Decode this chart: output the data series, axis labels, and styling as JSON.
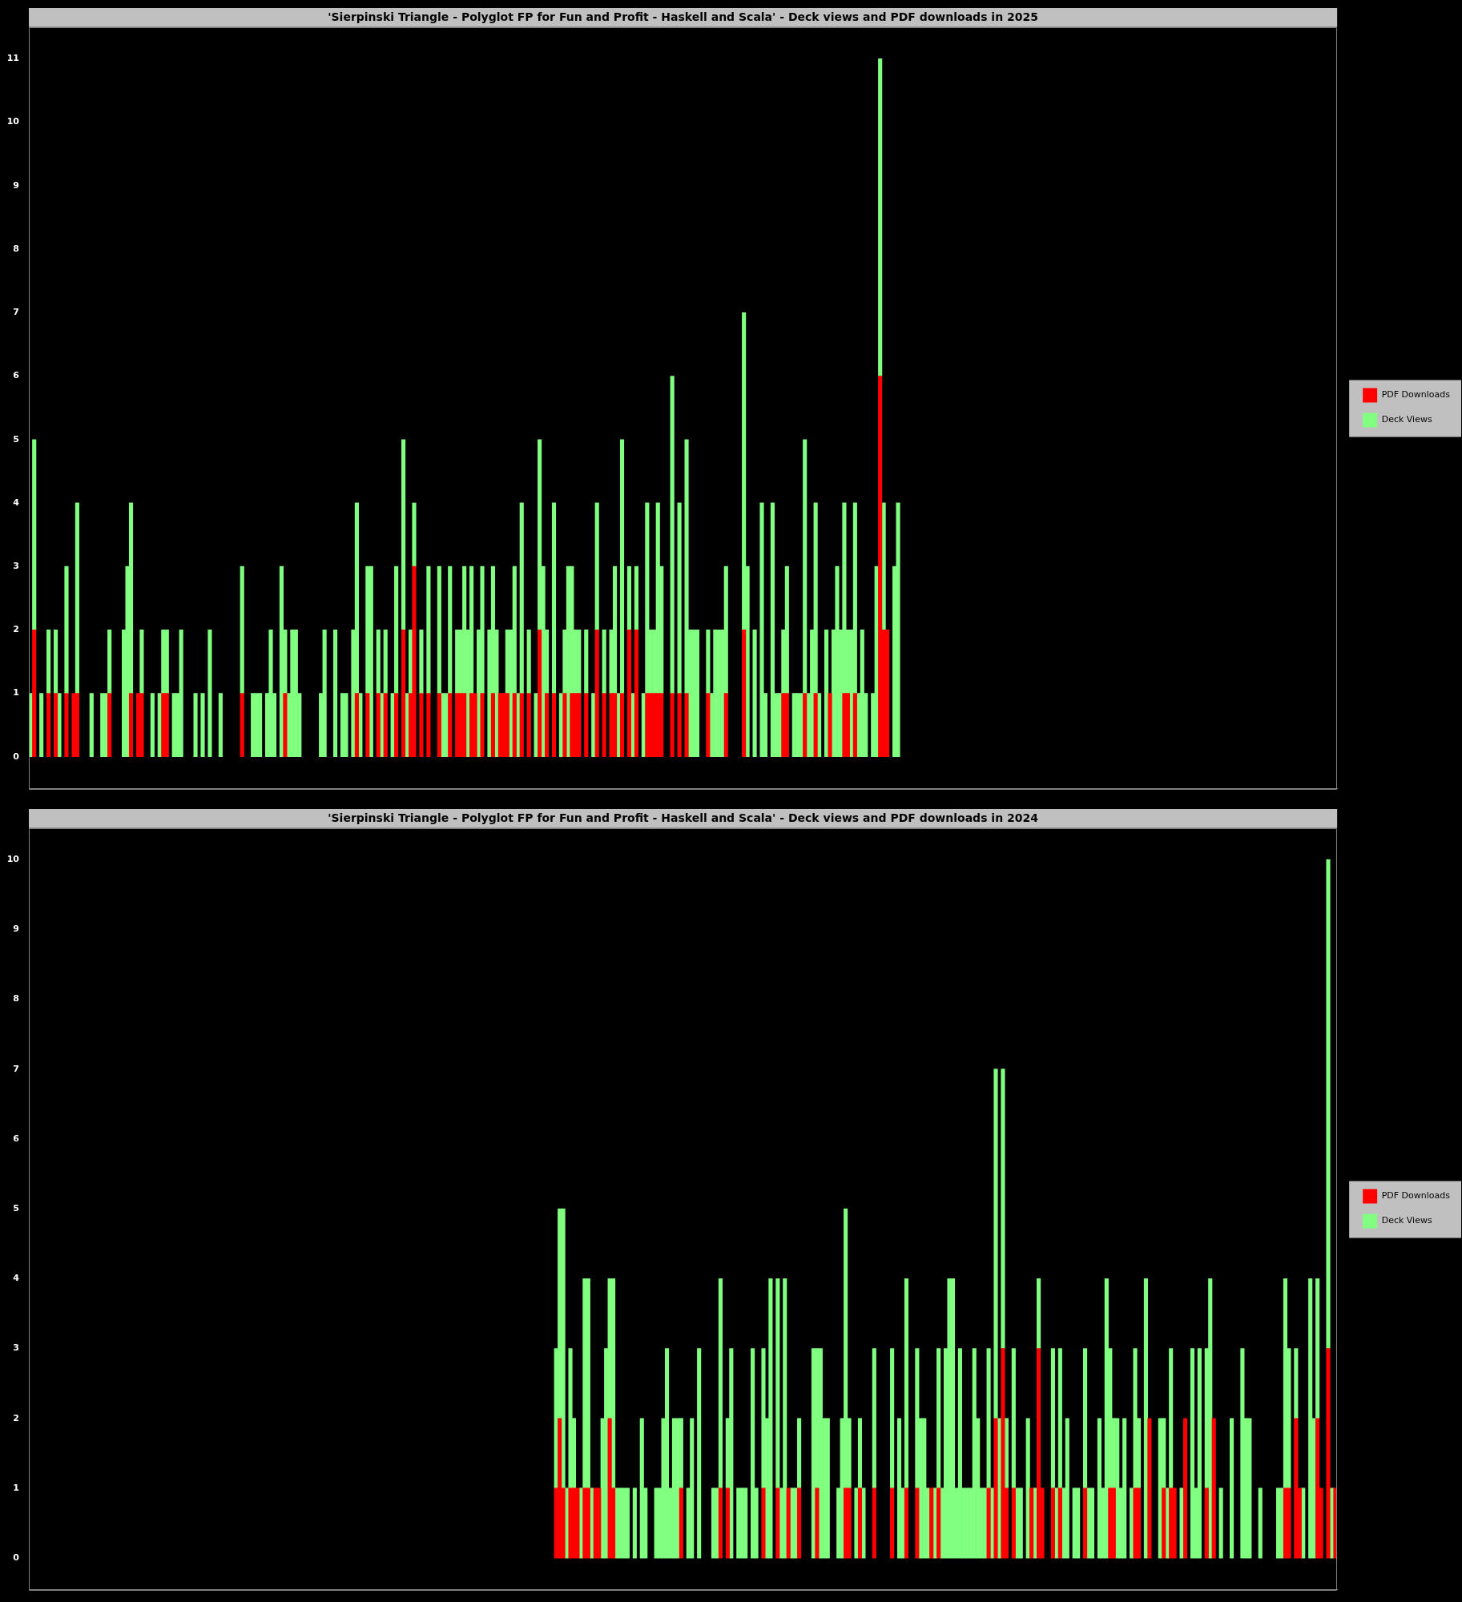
{
  "chart_data": [
    {
      "type": "bar",
      "title": "'Sierpinski Triangle - Polyglot FP for Fun and Profit - Haskell and Scala' - Deck views and PDF downloads in 2025",
      "categories": [
        null,
        null,
        null,
        null,
        null,
        null,
        null,
        null,
        null,
        null,
        null,
        null,
        null,
        null,
        null,
        null,
        null,
        null,
        null,
        null,
        null,
        null,
        null,
        null,
        null,
        null,
        null,
        null,
        null,
        null,
        null,
        null,
        null,
        null,
        null,
        null,
        null,
        null,
        null,
        null,
        null,
        null,
        null,
        null,
        null,
        null,
        null,
        null,
        null,
        null,
        null,
        null,
        null,
        null,
        null,
        null,
        null,
        null,
        null,
        null,
        null,
        null,
        null,
        null,
        null,
        null,
        null,
        null,
        null,
        null,
        null,
        null,
        null,
        null,
        null,
        null,
        null,
        null,
        null,
        null,
        null,
        null,
        null,
        null,
        null,
        null,
        null,
        null,
        null,
        null,
        null,
        null,
        null,
        null,
        null,
        null,
        null,
        null,
        null,
        null,
        null,
        null,
        null,
        null,
        null,
        null,
        null,
        null,
        null,
        null,
        null,
        null,
        null,
        null,
        null,
        null,
        null,
        null,
        null,
        null,
        null,
        null,
        null,
        null,
        null,
        null,
        null,
        null,
        null,
        null,
        null,
        null,
        null,
        null,
        null,
        null,
        null,
        null,
        null,
        null,
        null,
        null,
        null,
        null,
        null,
        null,
        null,
        null,
        null,
        null,
        null,
        null,
        null,
        null,
        null,
        null,
        null,
        null,
        null,
        null,
        null,
        null,
        null,
        null,
        null,
        null,
        null,
        null,
        null,
        null,
        null,
        null,
        null,
        null,
        null,
        null,
        null,
        null,
        null,
        null,
        null,
        null,
        null,
        null,
        null,
        null,
        null,
        null,
        null,
        null,
        null,
        null,
        null,
        null,
        null,
        null,
        null,
        null,
        null,
        null,
        null,
        null,
        null,
        null,
        null,
        null,
        null,
        null,
        null,
        null,
        null,
        null,
        null,
        null,
        null,
        null,
        null,
        null,
        null,
        null,
        null,
        null,
        null,
        null,
        null,
        null,
        null,
        null,
        null,
        null,
        null,
        null,
        null,
        null,
        null,
        null,
        null,
        null,
        null,
        null,
        null,
        null,
        null,
        null,
        null,
        null,
        null,
        null,
        null,
        null,
        null,
        null,
        null,
        null,
        null,
        null,
        null,
        null,
        null,
        null,
        null,
        null,
        null,
        null,
        null,
        null,
        null,
        null,
        null,
        null,
        null,
        null,
        null,
        null,
        null,
        null,
        null,
        null,
        null,
        null,
        null,
        null,
        null,
        null,
        null,
        null,
        null,
        null,
        null,
        null,
        null,
        null,
        null,
        null,
        null,
        null,
        null,
        null,
        null,
        null,
        null,
        null,
        null,
        null,
        null,
        null,
        null,
        null,
        null,
        null,
        null,
        null,
        null,
        null,
        null,
        null,
        null,
        null,
        null,
        null,
        null,
        null,
        null,
        null,
        null,
        null,
        null,
        null,
        null,
        null,
        null,
        null,
        null,
        null,
        null,
        null,
        null,
        null,
        null,
        null,
        null,
        null,
        null,
        null,
        null,
        null,
        null,
        null,
        null,
        null,
        null,
        null,
        null,
        null,
        null,
        null,
        null,
        null,
        null,
        null,
        null,
        null,
        null,
        null,
        null
      ],
      "stacked": true,
      "series": [
        {
          "name": "PDF Downloads",
          "color": "#ff0000",
          "values": [
            null,
            2,
            null,
            null,
            null,
            1,
            null,
            1,
            null,
            null,
            1,
            null,
            1,
            1,
            null,
            null,
            null,
            null,
            null,
            null,
            null,
            null,
            1,
            null,
            null,
            null,
            null,
            null,
            1,
            null,
            1,
            1,
            null,
            null,
            null,
            null,
            null,
            1,
            1,
            null,
            null,
            null,
            null,
            null,
            null,
            null,
            null,
            null,
            null,
            null,
            null,
            null,
            null,
            null,
            null,
            null,
            null,
            null,
            null,
            1,
            null,
            null,
            null,
            null,
            null,
            null,
            null,
            null,
            null,
            null,
            null,
            1,
            null,
            null,
            null,
            null,
            null,
            null,
            null,
            null,
            null,
            null,
            null,
            null,
            null,
            null,
            null,
            null,
            null,
            null,
            null,
            1,
            null,
            null,
            1,
            null,
            null,
            1,
            null,
            1,
            null,
            null,
            1,
            null,
            2,
            null,
            1,
            3,
            null,
            1,
            null,
            1,
            null,
            null,
            1,
            null,
            null,
            1,
            null,
            1,
            1,
            1,
            null,
            1,
            1,
            null,
            1,
            null,
            null,
            1,
            null,
            1,
            1,
            1,
            null,
            1,
            null,
            1,
            null,
            1,
            null,
            null,
            2,
            null,
            1,
            null,
            1,
            null,
            null,
            1,
            null,
            1,
            1,
            1,
            null,
            1,
            null,
            null,
            2,
            null,
            1,
            null,
            1,
            1,
            null,
            1,
            null,
            2,
            null,
            2,
            null,
            null,
            1,
            1,
            1,
            1,
            1,
            null,
            null,
            1,
            null,
            1,
            null,
            1,
            null,
            null,
            null,
            null,
            null,
            1,
            null,
            null,
            null,
            null,
            1,
            null,
            null,
            null,
            null,
            2,
            null,
            null,
            null,
            null,
            null,
            null,
            null,
            null,
            null,
            null,
            1,
            1,
            null,
            null,
            null,
            null,
            1,
            null,
            null,
            1,
            null,
            null,
            null,
            1,
            null,
            null,
            null,
            1,
            1,
            null,
            1,
            null,
            null,
            null,
            null,
            null,
            null,
            6,
            2,
            2,
            null,
            null,
            null,
            null,
            null,
            null,
            null,
            null,
            null,
            null,
            null,
            null,
            null,
            null,
            null,
            null,
            null,
            null,
            null,
            null,
            null,
            null,
            null,
            null,
            null,
            null,
            null,
            null,
            null,
            null,
            null,
            null,
            null,
            null,
            null,
            null,
            null,
            null,
            null,
            null,
            null,
            null,
            null,
            null,
            null,
            null,
            null,
            null,
            null,
            null,
            null,
            null,
            null,
            null,
            null,
            null,
            null,
            null,
            null,
            null,
            null,
            null,
            null,
            null,
            null,
            null,
            null,
            null,
            null,
            null,
            null,
            null,
            null,
            null,
            null,
            null,
            null,
            null,
            null,
            null,
            null,
            null,
            null,
            null,
            null,
            null,
            null,
            null,
            null,
            null,
            null,
            null,
            null,
            null,
            null,
            null,
            null,
            null,
            null,
            null,
            null,
            null,
            null,
            null,
            null,
            null,
            null,
            null,
            null,
            null,
            null,
            null,
            null,
            null,
            null,
            null,
            null,
            null,
            null,
            null,
            null,
            null,
            null,
            null,
            null
          ]
        },
        {
          "name": "Deck Views",
          "color": "#80ff80",
          "values": [
            1,
            3,
            null,
            1,
            null,
            1,
            null,
            1,
            1,
            null,
            2,
            null,
            null,
            3,
            null,
            null,
            null,
            1,
            null,
            null,
            1,
            1,
            1,
            null,
            null,
            null,
            2,
            3,
            3,
            null,
            null,
            1,
            null,
            null,
            1,
            null,
            1,
            1,
            1,
            null,
            1,
            1,
            2,
            null,
            null,
            null,
            1,
            null,
            1,
            null,
            2,
            null,
            null,
            1,
            null,
            null,
            null,
            null,
            null,
            2,
            null,
            null,
            1,
            1,
            1,
            null,
            1,
            2,
            1,
            null,
            3,
            1,
            1,
            2,
            2,
            1,
            null,
            null,
            null,
            null,
            null,
            1,
            2,
            null,
            null,
            2,
            null,
            1,
            1,
            null,
            2,
            3,
            1,
            null,
            2,
            3,
            null,
            1,
            1,
            1,
            null,
            1,
            2,
            null,
            3,
            1,
            1,
            1,
            null,
            1,
            null,
            2,
            null,
            null,
            2,
            1,
            1,
            2,
            null,
            1,
            1,
            2,
            2,
            2,
            null,
            2,
            2,
            null,
            2,
            2,
            2,
            null,
            null,
            1,
            2,
            2,
            1,
            3,
            null,
            1,
            null,
            1,
            3,
            3,
            1,
            null,
            3,
            null,
            1,
            1,
            3,
            2,
            1,
            1,
            null,
            1,
            null,
            1,
            2,
            null,
            1,
            null,
            1,
            2,
            1,
            4,
            null,
            1,
            1,
            1,
            null,
            1,
            3,
            1,
            1,
            3,
            2,
            null,
            null,
            5,
            null,
            3,
            null,
            4,
            2,
            2,
            2,
            null,
            null,
            1,
            1,
            2,
            2,
            2,
            2,
            null,
            null,
            null,
            null,
            5,
            3,
            null,
            2,
            null,
            4,
            1,
            null,
            4,
            1,
            1,
            1,
            2,
            null,
            1,
            1,
            1,
            4,
            1,
            2,
            3,
            1,
            null,
            2,
            null,
            2,
            3,
            2,
            3,
            1,
            2,
            3,
            1,
            2,
            1,
            null,
            1,
            3,
            5,
            2,
            null,
            null,
            3,
            4,
            null,
            null,
            null,
            null,
            null,
            null,
            null,
            null,
            null,
            null,
            null,
            null,
            null,
            null,
            null,
            null,
            null,
            null,
            null,
            null,
            null,
            null,
            null,
            null,
            null,
            null,
            null,
            null,
            null,
            null,
            null,
            null,
            null,
            null,
            null,
            null,
            null,
            null,
            null,
            null,
            null,
            null,
            null,
            null,
            null,
            null,
            null,
            null,
            null,
            null,
            null,
            null,
            null,
            null,
            null,
            null,
            null,
            null,
            null,
            null,
            null,
            null,
            null,
            null,
            null,
            null,
            null,
            null,
            null,
            null,
            null,
            null,
            null,
            null,
            null,
            null,
            null,
            null,
            null,
            null,
            null,
            null,
            null,
            null,
            null,
            null,
            null,
            null,
            null,
            null,
            null,
            null,
            null,
            null,
            null,
            null,
            null,
            null,
            null,
            null,
            null,
            null,
            null,
            null,
            null,
            null,
            null,
            null,
            null,
            null,
            null,
            null,
            null,
            null,
            null,
            null,
            null,
            null,
            null,
            null,
            null,
            null
          ]
        }
      ],
      "ylim": [
        -0.5,
        11.5
      ],
      "yticks": [
        0,
        1,
        2,
        3,
        4,
        5,
        6,
        7,
        8,
        9,
        10,
        11
      ],
      "legend": "right",
      "grid": false,
      "tick_labels": "y"
    },
    {
      "type": "bar",
      "title": "'Sierpinski Triangle - Polyglot FP for Fun and Profit - Haskell and Scala' - Deck views and PDF downloads in 2024",
      "categories": [
        null,
        null,
        null,
        null,
        null,
        null,
        null,
        null,
        null,
        null,
        null,
        null,
        null,
        null,
        null,
        null,
        null,
        null,
        null,
        null,
        null,
        null,
        null,
        null,
        null,
        null,
        null,
        null,
        null,
        null,
        null,
        null,
        null,
        null,
        null,
        null,
        null,
        null,
        null,
        null,
        null,
        null,
        null,
        null,
        null,
        null,
        null,
        null,
        null,
        null,
        null,
        null,
        null,
        null,
        null,
        null,
        null,
        null,
        null,
        null,
        null,
        null,
        null,
        null,
        null,
        null,
        null,
        null,
        null,
        null,
        null,
        null,
        null,
        null,
        null,
        null,
        null,
        null,
        null,
        null,
        null,
        null,
        null,
        null,
        null,
        null,
        null,
        null,
        null,
        null,
        null,
        null,
        null,
        null,
        null,
        null,
        null,
        null,
        null,
        null,
        null,
        null,
        null,
        null,
        null,
        null,
        null,
        null,
        null,
        null,
        null,
        null,
        null,
        null,
        null,
        null,
        null,
        null,
        null,
        null,
        null,
        null,
        null,
        null,
        null,
        null,
        null,
        null,
        null,
        null,
        null,
        null,
        null,
        null,
        null,
        null,
        null,
        null,
        null,
        null,
        null,
        null,
        null,
        null,
        null,
        null,
        null,
        null,
        null,
        null,
        null,
        null,
        null,
        null,
        null,
        null,
        null,
        null,
        null,
        null,
        null,
        null,
        null,
        null,
        null,
        null,
        null,
        null,
        null,
        null,
        null,
        null,
        null,
        null,
        null,
        null,
        null,
        null,
        null,
        null,
        null,
        null,
        null,
        null,
        null,
        null,
        null,
        null,
        null,
        null,
        null,
        null,
        null,
        null,
        null,
        null,
        null,
        null,
        null,
        null,
        null,
        null,
        null,
        null,
        null,
        null,
        null,
        null,
        null,
        null,
        null,
        null,
        null,
        null,
        null,
        null,
        null,
        null,
        null,
        null,
        null,
        null,
        null,
        null,
        null,
        null,
        null,
        null,
        null,
        null,
        null,
        null,
        null,
        null,
        null,
        null,
        null,
        null,
        null,
        null,
        null,
        null,
        null,
        null,
        null,
        null,
        null,
        null,
        null,
        null,
        null,
        null,
        null,
        null,
        null,
        null,
        null,
        null,
        null,
        null,
        null,
        null,
        null,
        null,
        null,
        null,
        null,
        null,
        null,
        null,
        null,
        null,
        null,
        null,
        null,
        null,
        null,
        null,
        null,
        null,
        null,
        null,
        null,
        null,
        null,
        null,
        null,
        null,
        null,
        null,
        null,
        null,
        null,
        null,
        null,
        null,
        null,
        null,
        null,
        null,
        null,
        null,
        null,
        null,
        null,
        null,
        null,
        null,
        null,
        null,
        null,
        null,
        null,
        null,
        null,
        null,
        null,
        null,
        null,
        null,
        null,
        null,
        null,
        null,
        null,
        null,
        null,
        null,
        null,
        null,
        null,
        null,
        null,
        null,
        null,
        null,
        null,
        null,
        null,
        null,
        null,
        null,
        null,
        null,
        null,
        null,
        null,
        null,
        null,
        null,
        null,
        null,
        null,
        null,
        null,
        null,
        null,
        null,
        null,
        null,
        null,
        null,
        null,
        null,
        null,
        null
      ],
      "stacked": true,
      "series": [
        {
          "name": "PDF Downloads",
          "color": "#ff0000",
          "values": [
            null,
            null,
            null,
            null,
            null,
            null,
            null,
            null,
            null,
            null,
            null,
            null,
            null,
            null,
            null,
            null,
            null,
            null,
            null,
            null,
            null,
            null,
            null,
            null,
            null,
            null,
            null,
            null,
            null,
            null,
            null,
            null,
            null,
            null,
            null,
            null,
            null,
            null,
            null,
            null,
            null,
            null,
            null,
            null,
            null,
            null,
            null,
            null,
            null,
            null,
            null,
            null,
            null,
            null,
            null,
            null,
            null,
            null,
            null,
            null,
            null,
            null,
            null,
            null,
            null,
            null,
            null,
            null,
            null,
            null,
            null,
            null,
            null,
            null,
            null,
            null,
            null,
            null,
            null,
            null,
            null,
            null,
            null,
            null,
            null,
            null,
            null,
            null,
            null,
            null,
            null,
            null,
            null,
            null,
            null,
            null,
            null,
            null,
            null,
            null,
            null,
            null,
            null,
            null,
            null,
            null,
            null,
            null,
            null,
            null,
            null,
            null,
            null,
            null,
            null,
            null,
            null,
            null,
            null,
            null,
            null,
            null,
            null,
            null,
            null,
            null,
            null,
            null,
            null,
            null,
            null,
            null,
            null,
            null,
            null,
            null,
            null,
            null,
            null,
            null,
            null,
            null,
            null,
            null,
            null,
            null,
            null,
            1,
            2,
            1,
            null,
            1,
            1,
            1,
            null,
            1,
            1,
            null,
            1,
            1,
            null,
            null,
            2,
            1,
            null,
            null,
            null,
            null,
            null,
            null,
            null,
            null,
            null,
            null,
            null,
            null,
            null,
            null,
            null,
            null,
            null,
            null,
            1,
            null,
            null,
            null,
            null,
            null,
            null,
            null,
            null,
            null,
            null,
            1,
            null,
            1,
            null,
            null,
            null,
            null,
            null,
            null,
            null,
            null,
            null,
            1,
            null,
            null,
            null,
            1,
            null,
            null,
            1,
            null,
            null,
            1,
            null,
            null,
            null,
            null,
            1,
            null,
            null,
            null,
            null,
            null,
            null,
            null,
            1,
            1,
            null,
            null,
            1,
            null,
            null,
            null,
            1,
            null,
            null,
            null,
            null,
            1,
            null,
            null,
            null,
            1,
            null,
            null,
            1,
            null,
            null,
            null,
            1,
            null,
            1,
            null,
            null,
            null,
            null,
            null,
            null,
            null,
            null,
            null,
            null,
            null,
            null,
            null,
            1,
            null,
            2,
            null,
            3,
            1,
            null,
            1,
            null,
            null,
            null,
            null,
            1,
            null,
            3,
            1,
            null,
            null,
            1,
            null,
            1,
            null,
            null,
            null,
            null,
            null,
            null,
            1,
            null,
            null,
            null,
            null,
            null,
            null,
            1,
            1,
            null,
            null,
            null,
            null,
            null,
            1,
            1,
            null,
            null,
            2,
            null,
            null,
            null,
            1,
            null,
            1,
            1,
            null,
            null,
            2,
            null,
            null,
            null,
            null,
            null,
            1,
            null,
            2,
            null,
            null,
            null,
            null,
            null,
            null,
            null,
            null,
            null,
            null,
            null,
            null,
            null,
            null,
            null,
            null,
            null,
            null,
            null,
            1,
            1,
            null,
            2,
            1,
            null,
            null,
            null,
            null,
            2,
            1,
            null,
            3,
            null,
            1
          ]
        },
        {
          "name": "Deck Views",
          "color": "#80ff80",
          "values": [
            null,
            null,
            null,
            null,
            null,
            null,
            null,
            null,
            null,
            null,
            null,
            null,
            null,
            null,
            null,
            null,
            null,
            null,
            null,
            null,
            null,
            null,
            null,
            null,
            null,
            null,
            null,
            null,
            null,
            null,
            null,
            null,
            null,
            null,
            null,
            null,
            null,
            null,
            null,
            null,
            null,
            null,
            null,
            null,
            null,
            null,
            null,
            null,
            null,
            null,
            null,
            null,
            null,
            null,
            null,
            null,
            null,
            null,
            null,
            null,
            null,
            null,
            null,
            null,
            null,
            null,
            null,
            null,
            null,
            null,
            null,
            null,
            null,
            null,
            null,
            null,
            null,
            null,
            null,
            null,
            null,
            null,
            null,
            null,
            null,
            null,
            null,
            null,
            null,
            null,
            null,
            null,
            null,
            null,
            null,
            null,
            null,
            null,
            null,
            null,
            null,
            null,
            null,
            null,
            null,
            null,
            null,
            null,
            null,
            null,
            null,
            null,
            null,
            null,
            null,
            null,
            null,
            null,
            null,
            null,
            null,
            null,
            null,
            null,
            null,
            null,
            null,
            null,
            null,
            null,
            null,
            null,
            null,
            null,
            null,
            null,
            null,
            null,
            null,
            null,
            null,
            null,
            null,
            null,
            null,
            null,
            null,
            2,
            3,
            4,
            1,
            2,
            1,
            null,
            1,
            3,
            3,
            1,
            null,
            null,
            2,
            3,
            2,
            3,
            1,
            1,
            1,
            1,
            null,
            1,
            null,
            2,
            1,
            null,
            null,
            1,
            1,
            2,
            3,
            1,
            2,
            2,
            1,
            null,
            1,
            2,
            null,
            3,
            null,
            null,
            null,
            1,
            1,
            3,
            null,
            1,
            3,
            null,
            1,
            1,
            1,
            null,
            3,
            1,
            null,
            2,
            2,
            4,
            null,
            3,
            1,
            4,
            null,
            1,
            1,
            1,
            null,
            null,
            null,
            3,
            2,
            3,
            2,
            2,
            null,
            null,
            1,
            2,
            4,
            1,
            null,
            1,
            1,
            1,
            null,
            null,
            2,
            null,
            null,
            null,
            null,
            2,
            null,
            2,
            1,
            3,
            null,
            null,
            2,
            2,
            2,
            1,
            null,
            1,
            2,
            1,
            3,
            4,
            4,
            1,
            3,
            1,
            1,
            1,
            3,
            2,
            1,
            1,
            2,
            1,
            5,
            2,
            4,
            1,
            null,
            2,
            1,
            1,
            null,
            2,
            null,
            1,
            1,
            null,
            null,
            null,
            2,
            1,
            2,
            1,
            2,
            null,
            1,
            1,
            null,
            2,
            1,
            1,
            null,
            2,
            1,
            4,
            2,
            1,
            2,
            1,
            2,
            null,
            1,
            2,
            1,
            null,
            4,
            null,
            null,
            null,
            2,
            1,
            1,
            2,
            null,
            null,
            1,
            null,
            null,
            3,
            1,
            3,
            null,
            2,
            4,
            null,
            null,
            1,
            null,
            null,
            2,
            null,
            null,
            3,
            2,
            2,
            null,
            null,
            1,
            null,
            null,
            null,
            null,
            1,
            1,
            3,
            2,
            null,
            1,
            null,
            1,
            null,
            4,
            2,
            2,
            null,
            null,
            7,
            1,
            null
          ]
        }
      ],
      "ylim": [
        -0.45,
        10.45
      ],
      "yticks": [
        0,
        1,
        2,
        3,
        4,
        5,
        6,
        7,
        8,
        9,
        10
      ],
      "legend": "right",
      "grid": false,
      "tick_labels": "y"
    }
  ]
}
